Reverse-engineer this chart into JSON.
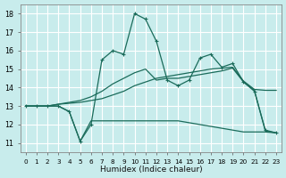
{
  "xlabel": "Humidex (Indice chaleur)",
  "bg_color": "#c8ecec",
  "grid_color": "#b0d4d4",
  "line_color": "#1a6b5a",
  "xlim": [
    -0.5,
    23.5
  ],
  "ylim": [
    10.5,
    18.5
  ],
  "xticks": [
    0,
    1,
    2,
    3,
    4,
    5,
    6,
    7,
    8,
    9,
    10,
    11,
    12,
    13,
    14,
    15,
    16,
    17,
    18,
    19,
    20,
    21,
    22,
    23
  ],
  "yticks": [
    11,
    12,
    13,
    14,
    15,
    16,
    17,
    18
  ],
  "series": [
    {
      "x": [
        0,
        1,
        2,
        3,
        4,
        5,
        6,
        7,
        8,
        9,
        10,
        11,
        12,
        13,
        14,
        15,
        16,
        17,
        18,
        19,
        20,
        21,
        22,
        23
      ],
      "y": [
        13,
        13,
        13,
        13,
        12.7,
        11.1,
        12.0,
        15.5,
        16.0,
        15.8,
        18.0,
        17.7,
        16.5,
        14.4,
        14.1,
        14.4,
        15.6,
        15.8,
        15.1,
        15.3,
        14.3,
        13.8,
        11.7,
        11.55
      ],
      "marker": "+"
    },
    {
      "x": [
        0,
        1,
        2,
        3,
        4,
        5,
        6,
        7,
        8,
        9,
        10,
        11,
        12,
        13,
        14,
        15,
        16,
        17,
        18,
        19,
        20,
        21,
        22,
        23
      ],
      "y": [
        13,
        13,
        13,
        13,
        12.7,
        11.1,
        12.2,
        12.2,
        12.2,
        12.2,
        12.2,
        12.2,
        12.2,
        12.2,
        12.2,
        12.1,
        12.0,
        11.9,
        11.8,
        11.7,
        11.6,
        11.6,
        11.6,
        11.55
      ],
      "marker": null
    },
    {
      "x": [
        0,
        1,
        2,
        3,
        4,
        5,
        6,
        7,
        8,
        9,
        10,
        11,
        12,
        13,
        14,
        15,
        16,
        17,
        18,
        19,
        20,
        21,
        22,
        23
      ],
      "y": [
        13,
        13,
        13,
        13.1,
        13.15,
        13.2,
        13.3,
        13.4,
        13.6,
        13.8,
        14.1,
        14.3,
        14.5,
        14.6,
        14.7,
        14.8,
        14.9,
        15.0,
        15.05,
        15.1,
        14.35,
        13.9,
        13.85,
        13.85
      ],
      "marker": null
    },
    {
      "x": [
        0,
        1,
        2,
        3,
        4,
        5,
        6,
        7,
        8,
        9,
        10,
        11,
        12,
        13,
        14,
        15,
        16,
        17,
        18,
        19,
        20,
        21,
        22,
        23
      ],
      "y": [
        13,
        13,
        13,
        13.1,
        13.2,
        13.3,
        13.5,
        13.8,
        14.2,
        14.5,
        14.8,
        15.0,
        14.4,
        14.5,
        14.5,
        14.6,
        14.7,
        14.8,
        14.9,
        15.05,
        14.3,
        13.85,
        11.65,
        11.55
      ],
      "marker": null
    }
  ]
}
